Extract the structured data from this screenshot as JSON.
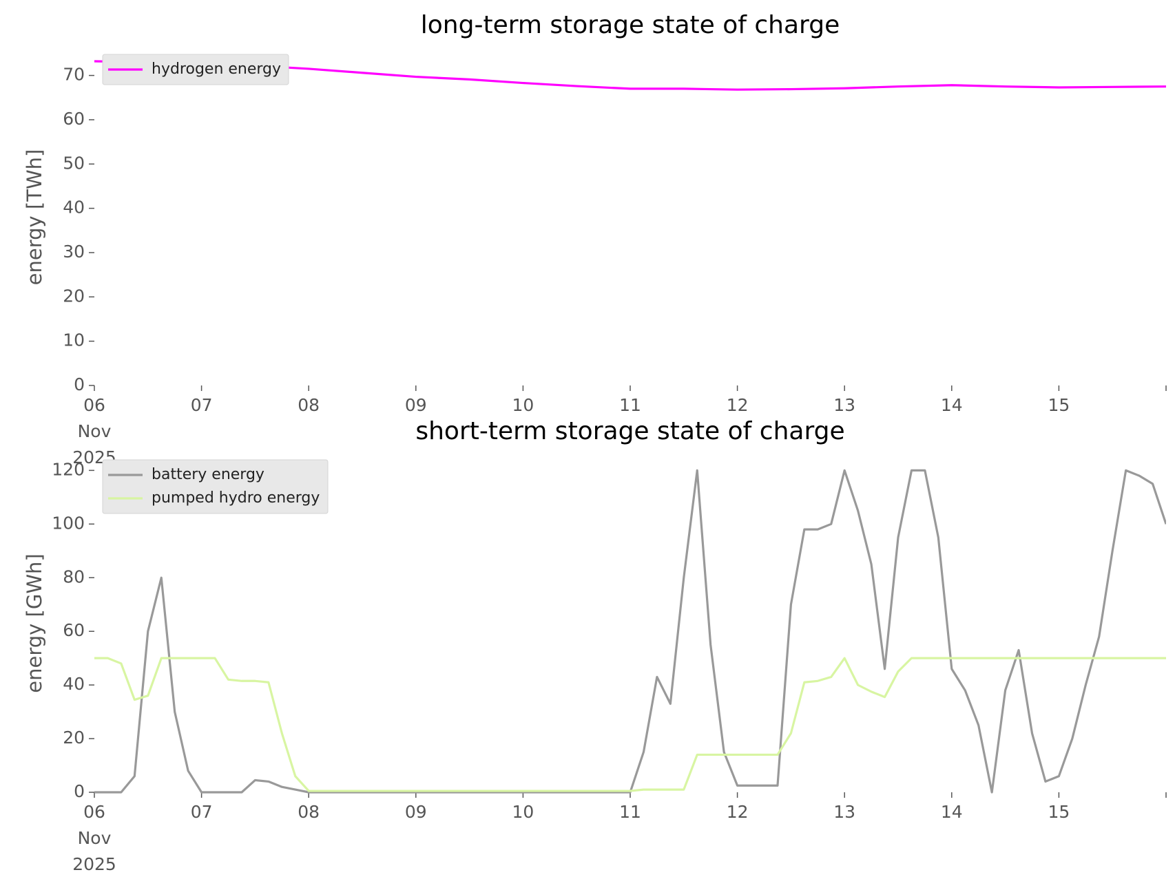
{
  "chart_data": [
    {
      "type": "line",
      "title": "long-term storage state of charge",
      "ylabel": "energy [TWh]",
      "x": [
        "2025-11-06 00:00",
        "2025-11-06 12:00",
        "2025-11-07 00:00",
        "2025-11-07 12:00",
        "2025-11-08 00:00",
        "2025-11-08 12:00",
        "2025-11-09 00:00",
        "2025-11-09 12:00",
        "2025-11-10 00:00",
        "2025-11-10 12:00",
        "2025-11-11 00:00",
        "2025-11-11 12:00",
        "2025-11-12 00:00",
        "2025-11-12 12:00",
        "2025-11-13 00:00",
        "2025-11-13 12:00",
        "2025-11-14 00:00",
        "2025-11-14 12:00",
        "2025-11-15 00:00",
        "2025-11-15 12:00",
        "2025-11-16 00:00"
      ],
      "series": [
        {
          "name": "hydrogen energy",
          "color": "#ff00ff",
          "values": [
            73.2,
            73.0,
            72.6,
            72.2,
            71.5,
            70.6,
            69.7,
            69.1,
            68.3,
            67.6,
            67.0,
            67.0,
            66.8,
            66.9,
            67.1,
            67.5,
            67.8,
            67.5,
            67.3,
            67.4,
            67.5
          ]
        }
      ],
      "xlim": [
        "2025-11-06 00:00",
        "2025-11-16 00:00"
      ],
      "xticks": [
        {
          "value": "2025-11-06 00:00",
          "label": "06\nNov\n2025"
        },
        {
          "value": "2025-11-07 00:00",
          "label": "07"
        },
        {
          "value": "2025-11-08 00:00",
          "label": "08"
        },
        {
          "value": "2025-11-09 00:00",
          "label": "09"
        },
        {
          "value": "2025-11-10 00:00",
          "label": "10"
        },
        {
          "value": "2025-11-11 00:00",
          "label": "11"
        },
        {
          "value": "2025-11-12 00:00",
          "label": "12"
        },
        {
          "value": "2025-11-13 00:00",
          "label": "13"
        },
        {
          "value": "2025-11-14 00:00",
          "label": "14"
        },
        {
          "value": "2025-11-15 00:00",
          "label": "15"
        },
        {
          "value": "2025-11-16 00:00"
        }
      ],
      "ylim": [
        0,
        76
      ],
      "yticks": [
        0,
        10,
        20,
        30,
        40,
        50,
        60,
        70
      ],
      "legend": "upper left"
    },
    {
      "type": "line",
      "title": "short-term storage state of charge",
      "ylabel": "energy [GWh]",
      "x": [
        "2025-11-06 00:00",
        "2025-11-06 03:00",
        "2025-11-06 06:00",
        "2025-11-06 09:00",
        "2025-11-06 12:00",
        "2025-11-06 15:00",
        "2025-11-06 18:00",
        "2025-11-06 21:00",
        "2025-11-07 00:00",
        "2025-11-07 03:00",
        "2025-11-07 06:00",
        "2025-11-07 09:00",
        "2025-11-07 12:00",
        "2025-11-07 15:00",
        "2025-11-07 18:00",
        "2025-11-07 21:00",
        "2025-11-08 00:00",
        "2025-11-08 03:00",
        "2025-11-08 06:00",
        "2025-11-08 09:00",
        "2025-11-08 12:00",
        "2025-11-08 15:00",
        "2025-11-08 18:00",
        "2025-11-08 21:00",
        "2025-11-09 00:00",
        "2025-11-09 03:00",
        "2025-11-09 06:00",
        "2025-11-09 09:00",
        "2025-11-09 12:00",
        "2025-11-09 15:00",
        "2025-11-09 18:00",
        "2025-11-09 21:00",
        "2025-11-10 00:00",
        "2025-11-10 03:00",
        "2025-11-10 06:00",
        "2025-11-10 09:00",
        "2025-11-10 12:00",
        "2025-11-10 15:00",
        "2025-11-10 18:00",
        "2025-11-10 21:00",
        "2025-11-11 00:00",
        "2025-11-11 03:00",
        "2025-11-11 06:00",
        "2025-11-11 09:00",
        "2025-11-11 12:00",
        "2025-11-11 15:00",
        "2025-11-11 18:00",
        "2025-11-11 21:00",
        "2025-11-12 00:00",
        "2025-11-12 03:00",
        "2025-11-12 06:00",
        "2025-11-12 09:00",
        "2025-11-12 12:00",
        "2025-11-12 15:00",
        "2025-11-12 18:00",
        "2025-11-12 21:00",
        "2025-11-13 00:00",
        "2025-11-13 03:00",
        "2025-11-13 06:00",
        "2025-11-13 09:00",
        "2025-11-13 12:00",
        "2025-11-13 15:00",
        "2025-11-13 18:00",
        "2025-11-13 21:00",
        "2025-11-14 00:00",
        "2025-11-14 03:00",
        "2025-11-14 06:00",
        "2025-11-14 09:00",
        "2025-11-14 12:00",
        "2025-11-14 15:00",
        "2025-11-14 18:00",
        "2025-11-14 21:00",
        "2025-11-15 00:00",
        "2025-11-15 03:00",
        "2025-11-15 06:00",
        "2025-11-15 09:00",
        "2025-11-15 12:00",
        "2025-11-15 15:00",
        "2025-11-15 18:00",
        "2025-11-15 21:00",
        "2025-11-16 00:00"
      ],
      "series": [
        {
          "name": "battery energy",
          "color": "#999999",
          "values": [
            0,
            0,
            0,
            6,
            60,
            80,
            30,
            8,
            0,
            0,
            0,
            0,
            4.5,
            4,
            2,
            1,
            0,
            0,
            0,
            0,
            0,
            0,
            0,
            0,
            0,
            0,
            0,
            0,
            0,
            0,
            0,
            0,
            0,
            0,
            0,
            0,
            0,
            0,
            0,
            0,
            0,
            15,
            43,
            33,
            80,
            120,
            55,
            15,
            2.5,
            2.5,
            2.5,
            2.5,
            70,
            98,
            98,
            100,
            120,
            105,
            85,
            46,
            95,
            120,
            120,
            95,
            46,
            38,
            25,
            0,
            38,
            53,
            22,
            4,
            6,
            20,
            40,
            58,
            90,
            120,
            118,
            115,
            100
          ]
        },
        {
          "name": "pumped hydro energy",
          "color": "#d8f5a2",
          "values": [
            50,
            50,
            48,
            34.5,
            36,
            50,
            50,
            50,
            50,
            50,
            42,
            41.5,
            41.5,
            41,
            22,
            6,
            0.5,
            0.5,
            0.5,
            0.5,
            0.5,
            0.5,
            0.5,
            0.5,
            0.5,
            0.5,
            0.5,
            0.5,
            0.5,
            0.5,
            0.5,
            0.5,
            0.5,
            0.5,
            0.5,
            0.5,
            0.5,
            0.5,
            0.5,
            0.5,
            0.5,
            1,
            1,
            1,
            1,
            14,
            14,
            14,
            14,
            14,
            14,
            14,
            22,
            41,
            41.5,
            43,
            50,
            40,
            37.5,
            35.5,
            45,
            50,
            50,
            50,
            50,
            50,
            50,
            50,
            50,
            50,
            50,
            50,
            50,
            50,
            50,
            50,
            50,
            50,
            50,
            50,
            50
          ]
        }
      ],
      "xlim": [
        "2025-11-06 00:00",
        "2025-11-16 00:00"
      ],
      "xticks": [
        {
          "value": "2025-11-06 00:00",
          "label": "06\nNov\n2025"
        },
        {
          "value": "2025-11-07 00:00",
          "label": "07"
        },
        {
          "value": "2025-11-08 00:00",
          "label": "08"
        },
        {
          "value": "2025-11-09 00:00",
          "label": "09"
        },
        {
          "value": "2025-11-10 00:00",
          "label": "10"
        },
        {
          "value": "2025-11-11 00:00",
          "label": "11"
        },
        {
          "value": "2025-11-12 00:00",
          "label": "12"
        },
        {
          "value": "2025-11-13 00:00",
          "label": "13"
        },
        {
          "value": "2025-11-14 00:00",
          "label": "14"
        },
        {
          "value": "2025-11-15 00:00",
          "label": "15"
        },
        {
          "value": "2025-11-16 00:00"
        }
      ],
      "ylim": [
        0,
        126
      ],
      "yticks": [
        0,
        20,
        40,
        60,
        80,
        100,
        120
      ],
      "legend": "upper left"
    }
  ]
}
